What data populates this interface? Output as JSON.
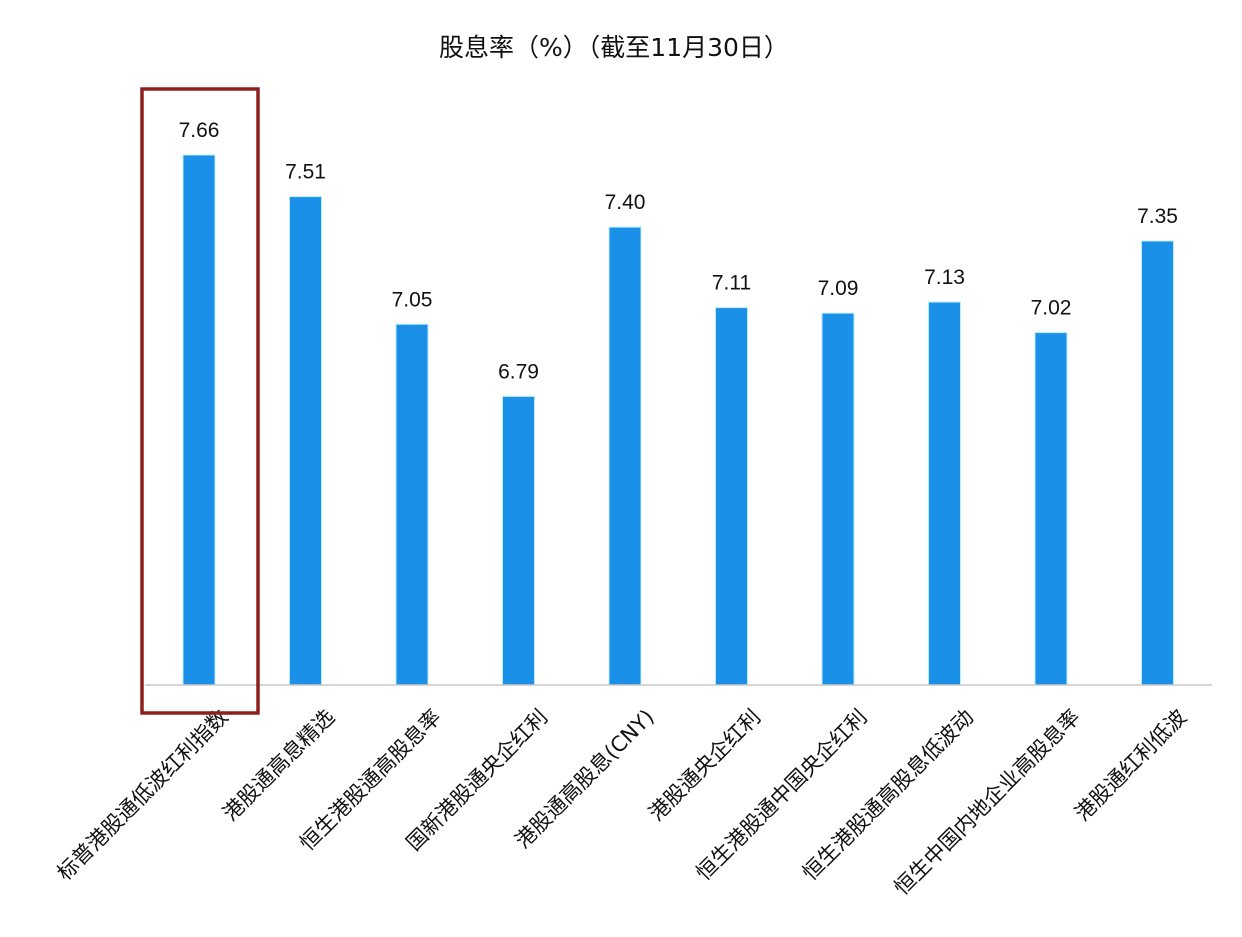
{
  "chart_data": {
    "type": "bar",
    "title": "股息率（%）（截至11月30日）",
    "xlabel": "",
    "ylabel": "",
    "categories": [
      "标普港股通低波红利指数",
      "港股通高息精选",
      "恒生港股通高股息率",
      "国新港股通央企红利",
      "港股通高股息(CNY)",
      "港股通央企红利",
      "恒生港股通中国央企红利",
      "恒生港股通高股息低波动",
      "恒生中国内地企业高股息率",
      "港股通红利低波"
    ],
    "values": [
      7.66,
      7.51,
      7.05,
      6.79,
      7.4,
      7.11,
      7.09,
      7.13,
      7.02,
      7.35
    ],
    "value_labels": [
      "7.66",
      "7.51",
      "7.05",
      "6.79",
      "7.40",
      "7.11",
      "7.09",
      "7.13",
      "7.02",
      "7.35"
    ],
    "ylim": [
      5.75,
      7.66
    ],
    "grid": false,
    "legend": "none",
    "highlight_index": 0,
    "colors": {
      "bar": "#1a90e8",
      "bar_edge": "#b8ecf7",
      "highlight_box": "#8e1f1f",
      "axis": "#c8c8c8"
    }
  }
}
